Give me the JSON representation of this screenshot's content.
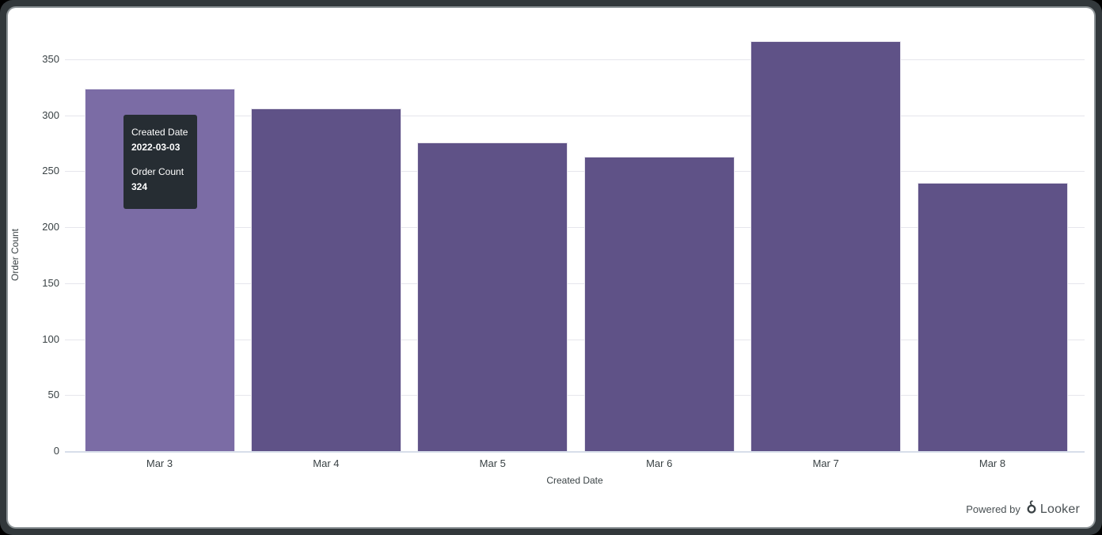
{
  "chart_data": {
    "type": "bar",
    "title": "",
    "xlabel": "Created Date",
    "ylabel": "Order Count",
    "categories": [
      "Mar 3",
      "Mar 4",
      "Mar 5",
      "Mar 6",
      "Mar 7",
      "Mar 8"
    ],
    "values": [
      324,
      306,
      276,
      263,
      366,
      240
    ],
    "y_ticks": [
      0,
      50,
      100,
      150,
      200,
      250,
      300,
      350
    ],
    "ylim": [
      0,
      350
    ],
    "grid": true,
    "legend": "none",
    "bar_color": "#5f5287",
    "bar_hover_color": "#7b6ca5",
    "hovered_index": 0
  },
  "tooltip": {
    "bg_color": "#262d33",
    "rows": [
      {
        "label": "Created Date",
        "value": "2022-03-03"
      },
      {
        "label": "Order Count",
        "value": "324"
      }
    ]
  },
  "footer": {
    "powered_by": "Powered by",
    "brand": "Looker"
  }
}
